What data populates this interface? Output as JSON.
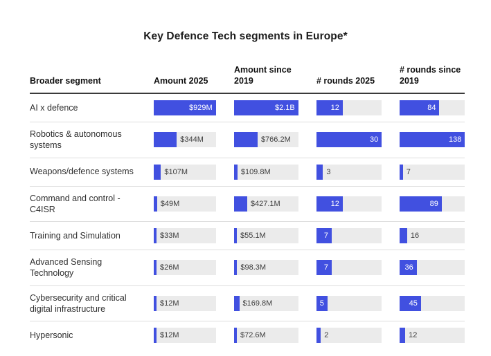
{
  "title": "Key Defence Tech segments in Europe*",
  "chart_data": {
    "type": "table",
    "title": "Key Defence Tech segments in Europe*",
    "columns": [
      "Broader segment",
      "Amount 2025",
      "Amount since 2019",
      "# rounds 2025",
      "# rounds since 2019"
    ],
    "value_columns_units": [
      "USD millions",
      "USD millions",
      "rounds",
      "rounds"
    ],
    "column_scale_max": [
      929,
      2100,
      30,
      138
    ],
    "rows": [
      {
        "segment": "AI x defence",
        "cells": [
          {
            "text": "$929M",
            "value": 929,
            "pct": 100
          },
          {
            "text": "$2.1B",
            "value": 2100,
            "pct": 100
          },
          {
            "text": "12",
            "value": 12,
            "pct": 40
          },
          {
            "text": "84",
            "value": 84,
            "pct": 60.9
          }
        ]
      },
      {
        "segment": "Robotics & autonomous systems",
        "cells": [
          {
            "text": "$344M",
            "value": 344,
            "pct": 37
          },
          {
            "text": "$766.2M",
            "value": 766.2,
            "pct": 36.5
          },
          {
            "text": "30",
            "value": 30,
            "pct": 100
          },
          {
            "text": "138",
            "value": 138,
            "pct": 100
          }
        ]
      },
      {
        "segment": "Weapons/defence systems",
        "cells": [
          {
            "text": "$107M",
            "value": 107,
            "pct": 11.5
          },
          {
            "text": "$109.8M",
            "value": 109.8,
            "pct": 5.2
          },
          {
            "text": "3",
            "value": 3,
            "pct": 10
          },
          {
            "text": "7",
            "value": 7,
            "pct": 5.1
          }
        ]
      },
      {
        "segment": "Command and control - C4ISR",
        "cells": [
          {
            "text": "$49M",
            "value": 49,
            "pct": 5.3
          },
          {
            "text": "$427.1M",
            "value": 427.1,
            "pct": 20.3
          },
          {
            "text": "12",
            "value": 12,
            "pct": 40
          },
          {
            "text": "89",
            "value": 89,
            "pct": 64.5
          }
        ]
      },
      {
        "segment": "Training and Simulation",
        "cells": [
          {
            "text": "$33M",
            "value": 33,
            "pct": 3.6
          },
          {
            "text": "$55.1M",
            "value": 55.1,
            "pct": 2.6
          },
          {
            "text": "7",
            "value": 7,
            "pct": 23.3
          },
          {
            "text": "16",
            "value": 16,
            "pct": 11.6
          }
        ]
      },
      {
        "segment": "Advanced Sensing Technology",
        "cells": [
          {
            "text": "$26M",
            "value": 26,
            "pct": 2.8
          },
          {
            "text": "$98.3M",
            "value": 98.3,
            "pct": 4.7
          },
          {
            "text": "7",
            "value": 7,
            "pct": 23.3
          },
          {
            "text": "36",
            "value": 36,
            "pct": 26.1
          }
        ]
      },
      {
        "segment": "Cybersecurity and critical digital infrastructure",
        "cells": [
          {
            "text": "$12M",
            "value": 12,
            "pct": 1.3
          },
          {
            "text": "$169.8M",
            "value": 169.8,
            "pct": 8.1
          },
          {
            "text": "5",
            "value": 5,
            "pct": 16.7
          },
          {
            "text": "45",
            "value": 45,
            "pct": 32.6
          }
        ]
      },
      {
        "segment": "Hypersonic",
        "cells": [
          {
            "text": "$12M",
            "value": 12,
            "pct": 1.3
          },
          {
            "text": "$72.6M",
            "value": 72.6,
            "pct": 3.5
          },
          {
            "text": "2",
            "value": 2,
            "pct": 6.7
          },
          {
            "text": "12",
            "value": 12,
            "pct": 8.7
          }
        ]
      }
    ]
  },
  "colors": {
    "bar_fill": "#4150e0",
    "bar_track": "#ebebeb",
    "header_rule": "#3a3a3a",
    "row_divider": "#dcdcdc",
    "title_text": "#1c1c1c",
    "inside_bar_label": "#ffffff",
    "outside_bar_label": "#3d3d3d"
  }
}
